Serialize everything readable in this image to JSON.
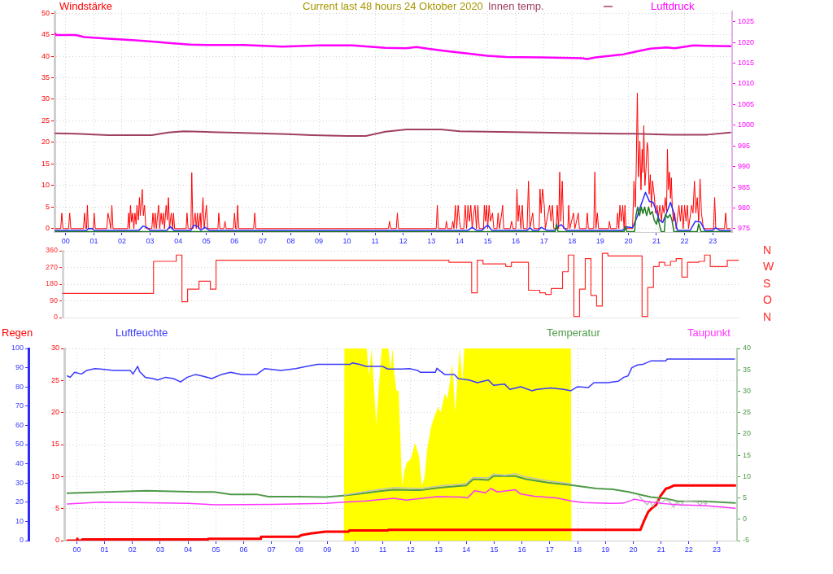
{
  "chart_data": [
    {
      "type": "line",
      "title": "Current last 48 hours 24 Oktober 2020",
      "legend": "top",
      "grid": true,
      "xlim": [
        -0.4,
        23.69
      ],
      "xticks": [
        {
          "value": 0,
          "label": "00"
        },
        {
          "value": 1,
          "label": "01"
        },
        {
          "value": 2,
          "label": "02"
        },
        {
          "value": 3,
          "label": "03"
        },
        {
          "value": 4,
          "label": "04"
        },
        {
          "value": 5,
          "label": "05"
        },
        {
          "value": 6,
          "label": "06"
        },
        {
          "value": 7,
          "label": "07"
        },
        {
          "value": 8,
          "label": "08"
        },
        {
          "value": 9,
          "label": "09"
        },
        {
          "value": 10,
          "label": "10"
        },
        {
          "value": 11,
          "label": "11"
        },
        {
          "value": 12,
          "label": "12"
        },
        {
          "value": 13,
          "label": "13"
        },
        {
          "value": 14,
          "label": "14"
        },
        {
          "value": 15,
          "label": "15"
        },
        {
          "value": 16,
          "label": "16"
        },
        {
          "value": 17,
          "label": "17"
        },
        {
          "value": 18,
          "label": "18"
        },
        {
          "value": 19,
          "label": "19"
        },
        {
          "value": 20,
          "label": "20"
        },
        {
          "value": 21,
          "label": "21"
        },
        {
          "value": 22,
          "label": "22"
        },
        {
          "value": 23,
          "label": "23"
        }
      ],
      "ylim": [
        -0.8,
        50.4
      ],
      "yticks": [
        0,
        5,
        10,
        15,
        20,
        25,
        30,
        35,
        40,
        45,
        50
      ],
      "y2lim": [
        974.2,
        1027.5
      ],
      "y2ticks": [
        975,
        980,
        985,
        990,
        995,
        1000,
        1005,
        1010,
        1015,
        1020,
        1025
      ],
      "series": [
        {
          "name": "Windstärke",
          "color": "#ff0000",
          "x": [
            -0.37,
            -0.18,
            -0.14,
            -0.1,
            0.1,
            0.14,
            0.18,
            0.63,
            0.67,
            0.71,
            0.74,
            0.77,
            0.8,
            0.98,
            1.01,
            1.05,
            1.46,
            1.5,
            1.55,
            1.6,
            1.64,
            1.68,
            2.2,
            2.24,
            2.27,
            2.3,
            2.34,
            2.38,
            2.42,
            2.46,
            2.5,
            2.53,
            2.58,
            2.62,
            2.65,
            2.72,
            2.76,
            2.8,
            2.85,
            3.06,
            3.1,
            3.14,
            3.18,
            3.22,
            3.3,
            3.34,
            3.39,
            3.43,
            3.47,
            3.51,
            3.57,
            3.61,
            3.65,
            3.69,
            3.75,
            3.8,
            3.83,
            3.87,
            4.28,
            4.31,
            4.35,
            4.45,
            4.48,
            4.52,
            4.6,
            4.64,
            4.68,
            4.72,
            4.78,
            4.81,
            4.88,
            4.92,
            5,
            5.05,
            5.41,
            5.44,
            5.48,
            5.62,
            5.66,
            5.7,
            5.96,
            6,
            6.04,
            6.08,
            6.11,
            6.15,
            6.68,
            6.72,
            6.76,
            11.47,
            11.51,
            11.55,
            11.75,
            11.79,
            11.83,
            13.17,
            13.21,
            13.25,
            13.5,
            13.53,
            13.57,
            13.72,
            13.76,
            13.8,
            13.85,
            13.9,
            13.95,
            14,
            14.04,
            14.15,
            14.2,
            14.25,
            14.3,
            14.35,
            14.4,
            14.45,
            14.5,
            14.55,
            14.6,
            14.65,
            14.7,
            14.85,
            14.88,
            14.92,
            14.96,
            15,
            15.05,
            15.1,
            15.17,
            15.22,
            15.33,
            15.37,
            15.42,
            15.5,
            15.53,
            15.57,
            15.8,
            15.85,
            15.9,
            16,
            16.04,
            16.08,
            16.12,
            16.18,
            16.23,
            16.27,
            16.4,
            16.45,
            16.5,
            16.6,
            16.64,
            16.83,
            16.86,
            16.9,
            16.95,
            17.01,
            17.05,
            17.2,
            17.25,
            17.3,
            17.35,
            17.44,
            17.47,
            17.52,
            17.56,
            17.6,
            17.65,
            17.7,
            17.85,
            17.88,
            17.92,
            18.05,
            18.1,
            18.22,
            18.26,
            18.5,
            18.54,
            18.58,
            18.77,
            18.81,
            18.85,
            18.9,
            18.94,
            19.3,
            19.33,
            19.37,
            19.58,
            19.62,
            19.66,
            19.7,
            19.75,
            19.8,
            19.85,
            19.88,
            19.92,
            20.15,
            20.2,
            20.25,
            20.28,
            20.32,
            20.36,
            20.41,
            20.45,
            20.49,
            20.52,
            20.55,
            20.59,
            20.63,
            20.67,
            20.7,
            20.74,
            20.78,
            20.82,
            20.86,
            20.92,
            20.97,
            21.02,
            21.07,
            21.12,
            21.18,
            21.22,
            21.27,
            21.31,
            21.36,
            21.39,
            21.42,
            21.46,
            21.5,
            21.53,
            21.56,
            21.6,
            21.65,
            21.7,
            21.8,
            21.85,
            21.9,
            21.95,
            22,
            22.05,
            22.1,
            22.14,
            22.25,
            22.3,
            22.35,
            22.4,
            22.45,
            22.5,
            22.55,
            22.6,
            22.67,
            23.03,
            23.07,
            23.11,
            23.42,
            23.46,
            23.5,
            23.63
          ],
          "values": [
            0,
            0,
            3.6,
            0,
            0,
            3.6,
            0,
            0,
            3.6,
            0,
            0,
            5.4,
            0,
            0,
            3.6,
            0,
            0,
            3.6,
            2,
            0,
            5.4,
            0,
            0,
            3.6,
            0,
            5.4,
            1.5,
            3.6,
            0,
            3.6,
            1,
            5.4,
            2,
            7.2,
            3,
            9.1,
            3,
            5.4,
            0,
            0,
            3.6,
            0,
            3.6,
            0,
            5.4,
            0,
            3.6,
            1,
            3.6,
            0,
            5.4,
            2,
            7.2,
            0,
            3.6,
            0,
            3.6,
            0,
            0,
            3.6,
            0,
            0,
            13,
            0,
            3.6,
            0,
            3.6,
            0,
            3.6,
            0,
            7.2,
            0,
            5.4,
            0,
            0,
            3.6,
            0,
            0,
            1.7,
            0,
            0,
            3.6,
            0,
            0,
            5.4,
            0,
            0,
            3.6,
            0,
            0,
            1.7,
            0,
            0,
            3.6,
            0,
            0,
            5.4,
            0,
            0,
            1.7,
            0,
            0,
            1.7,
            0,
            5.4,
            0,
            5.4,
            1.7,
            0,
            0,
            5.4,
            0,
            5.4,
            1.7,
            5.4,
            0,
            3.6,
            5.4,
            0,
            5.4,
            0,
            0,
            5.4,
            1.7,
            5.4,
            0,
            5.4,
            1.7,
            3.6,
            0,
            0,
            3.6,
            0,
            3.6,
            5.4,
            0,
            0,
            1.7,
            0,
            0,
            9.2,
            1.7,
            5.4,
            0,
            5.4,
            0,
            0,
            11,
            0,
            3.6,
            0,
            0,
            9.2,
            3.6,
            9.2,
            5.4,
            0,
            5.4,
            1.7,
            5.4,
            0,
            0,
            5.4,
            0,
            13.1,
            1.7,
            11,
            0,
            0,
            5.4,
            0,
            3.6,
            0,
            3.6,
            0,
            0,
            3.6,
            0,
            0,
            13.1,
            0,
            3.6,
            0,
            0,
            1.7,
            0,
            0,
            3.6,
            0,
            5.4,
            1.7,
            5.4,
            0,
            5.4,
            0,
            0,
            11,
            5,
            14,
            31.5,
            12,
            20.3,
            9,
            18.4,
            13,
            23.9,
            10,
            14,
            20,
            18.5,
            8,
            12.5,
            5,
            11.1,
            7.7,
            3.6,
            5.4,
            2.7,
            5.4,
            1.7,
            5.4,
            3.6,
            7.2,
            4,
            18.4,
            9,
            13.1,
            7,
            11.8,
            5.4,
            1.7,
            3.6,
            0,
            5.4,
            1.7,
            5.4,
            0,
            5.4,
            1.7,
            5.4,
            0,
            5.4,
            3.6,
            11,
            3.6,
            7.2,
            1.7,
            11.5,
            3.6,
            0,
            0,
            7.2,
            0,
            0,
            3.6,
            0,
            0
          ]
        },
        {
          "color": "#2b2bff",
          "x": [
            -0.37,
            0.75,
            0.8,
            0.95,
            1,
            2.6,
            2.75,
            2.9,
            3,
            3.6,
            3.7,
            3.85,
            4.45,
            4.55,
            4.7,
            4.8,
            4.95,
            5.1,
            14.3,
            14.45,
            14.6,
            14.8,
            14.9,
            15,
            15.15,
            16.4,
            16.5,
            16.6,
            16.8,
            16.9,
            17.1,
            17.4,
            17.5,
            17.62,
            17.8,
            19.8,
            19.95,
            20.15,
            20.3,
            20.45,
            20.61,
            20.75,
            20.88,
            21,
            21.1,
            21.22,
            21.35,
            21.5,
            21.6,
            21.74,
            22.2,
            22.38,
            22.57,
            22.72,
            23,
            23.1,
            23.25,
            23.63
          ],
          "values": [
            -0.4,
            -0.4,
            0,
            0,
            -0.4,
            -0.4,
            0.6,
            0.2,
            -0.4,
            -0.4,
            0.5,
            -0.4,
            -0.4,
            0.8,
            0.5,
            -0.4,
            0.3,
            -0.4,
            -0.4,
            0.3,
            -0.4,
            -0.4,
            0.3,
            0.8,
            -0.4,
            -0.4,
            0.2,
            -0.4,
            -0.4,
            0.3,
            -0.4,
            -0.4,
            0.5,
            0.9,
            -0.4,
            -0.4,
            0.4,
            0.2,
            2.5,
            5.5,
            8.4,
            6.3,
            6.1,
            4,
            2,
            1.4,
            3.5,
            6.1,
            4,
            -0.4,
            -0.4,
            1.7,
            1.5,
            -0.4,
            -0.4,
            0.2,
            -0.4,
            -0.4
          ]
        },
        {
          "color": "#1f7a1f",
          "x": [
            -0.37,
            17.4,
            17.45,
            17.5,
            19.85,
            19.9,
            19.95,
            20.22,
            20.27,
            20.33,
            20.4,
            20.46,
            20.52,
            20.58,
            20.65,
            20.72,
            20.78,
            20.85,
            20.92,
            21,
            21.05,
            21.12,
            21.17,
            21.28,
            21.32,
            21.4,
            21.48,
            21.55,
            21.62,
            22.45,
            22.5,
            22.58,
            23.63
          ],
          "values": [
            -0.7,
            -0.7,
            1.1,
            -0.7,
            -0.7,
            0.5,
            -0.7,
            -0.7,
            3,
            5,
            3,
            5,
            3.5,
            5,
            3,
            5,
            3.3,
            4,
            2,
            1,
            2.5,
            0.5,
            -0.7,
            -0.7,
            3.3,
            2.5,
            3.3,
            2,
            -0.7,
            -0.7,
            1.1,
            -0.7,
            -0.7
          ]
        },
        {
          "name": "Innen temp.",
          "color": "#a0405f",
          "x": [
            -0.37,
            0.36,
            1.51,
            3.06,
            3.64,
            4.2,
            5.17,
            6.33,
            7.88,
            8.75,
            10,
            10.67,
            11.36,
            12.12,
            13.34,
            14.01,
            15.95,
            18.66,
            20.2,
            21.55,
            22.81,
            23.63
          ],
          "values": [
            22.1,
            22,
            21.7,
            21.7,
            22.3,
            22.6,
            22.4,
            22.2,
            21.9,
            21.7,
            21.5,
            21.5,
            22.5,
            23,
            23,
            22.6,
            22.4,
            22.1,
            22,
            21.8,
            21.8,
            22.3
          ]
        },
        {
          "name": "Luftdruck",
          "color": "#ff00ff",
          "axis": "y2",
          "x": [
            -0.37,
            -0.34,
            0.36,
            0.65,
            1.51,
            2.48,
            3.06,
            3.83,
            4.41,
            4.98,
            6.33,
            7.69,
            9.03,
            10.19,
            10.96,
            11.36,
            12.1,
            12.47,
            12.86,
            13.53,
            14.3,
            14.98,
            15.66,
            16.91,
            18.36,
            18.54,
            18.84,
            19.81,
            20.29,
            20.78,
            21.36,
            21.65,
            22.32,
            22.71,
            23.63
          ],
          "values": [
            1022.1,
            1021.8,
            1021.8,
            1021.3,
            1020.9,
            1020.5,
            1020.2,
            1019.8,
            1019.5,
            1019.4,
            1019.4,
            1019,
            1019.3,
            1019.3,
            1018.9,
            1018.7,
            1018.6,
            1018.9,
            1018.5,
            1017.9,
            1017.3,
            1016.8,
            1016.5,
            1016.4,
            1016.2,
            1016,
            1016.4,
            1017.1,
            1017.8,
            1018.5,
            1018.8,
            1018.6,
            1019.3,
            1019.2,
            1019.1
          ]
        }
      ]
    },
    {
      "type": "line",
      "grid": "y",
      "tick_labels": "y",
      "categories": [
        null,
        null,
        null,
        null,
        null,
        null,
        null,
        null,
        null,
        null,
        null,
        null,
        null,
        null,
        null,
        null,
        null,
        null,
        null,
        null,
        null,
        null,
        null,
        null,
        null,
        null,
        null,
        null,
        null,
        null,
        null,
        null,
        null,
        null,
        null,
        null,
        null,
        null,
        null,
        null,
        null,
        null,
        null,
        null,
        null,
        null,
        null,
        null,
        null,
        null,
        null,
        null,
        null,
        null,
        null,
        null,
        null,
        null,
        null,
        null,
        null,
        null,
        null,
        null,
        null,
        null,
        null,
        null,
        null,
        null,
        null,
        null,
        null,
        null,
        null,
        null,
        null,
        null,
        null,
        null,
        null,
        null,
        null,
        null,
        null,
        null,
        null,
        null,
        null,
        null,
        null,
        null,
        null,
        null,
        null,
        null,
        null,
        null,
        null,
        null,
        null,
        null,
        null,
        null,
        null,
        null,
        null,
        null,
        null,
        null,
        null,
        null,
        null,
        null,
        null,
        null,
        null,
        null,
        null,
        null
      ],
      "ylim": [
        0,
        360
      ],
      "yticks": [
        0,
        90,
        180,
        270,
        360
      ],
      "annotations": [
        "N",
        "W",
        "S",
        "O",
        "N"
      ],
      "series": [
        {
          "type": "step",
          "color": "#ff2a2a",
          "values": [
            130,
            130,
            130,
            130,
            130,
            130,
            130,
            130,
            130,
            130,
            130,
            130,
            130,
            130,
            130,
            130,
            303,
            303,
            303,
            303,
            337,
            85,
            153,
            153,
            196,
            196,
            153,
            309,
            309,
            309,
            309,
            309,
            309,
            309,
            309,
            309,
            309,
            309,
            309,
            309,
            309,
            309,
            309,
            309,
            309,
            309,
            309,
            309,
            309,
            309,
            309,
            309,
            309,
            309,
            309,
            309,
            309,
            309,
            309,
            309,
            309,
            309,
            309,
            309,
            309,
            309,
            309,
            309,
            298,
            298,
            298,
            298,
            133,
            309,
            289,
            289,
            289,
            289,
            275,
            298,
            298,
            298,
            147,
            147,
            133,
            125,
            156,
            156,
            247,
            337,
            6,
            153,
            318,
            119,
            62,
            346,
            332,
            332,
            332,
            332,
            332,
            332,
            6,
            162,
            275,
            298,
            281,
            303,
            318,
            218,
            298,
            298,
            303,
            337,
            275,
            275,
            275,
            309,
            309,
            309
          ]
        }
      ]
    },
    {
      "type": "line",
      "legend": "top",
      "grid": true,
      "xlim": [
        -0.45,
        23.73
      ],
      "xticks": [
        {
          "value": 0,
          "label": "00"
        },
        {
          "value": 1,
          "label": "01"
        },
        {
          "value": 2,
          "label": "02"
        },
        {
          "value": 3,
          "label": "03"
        },
        {
          "value": 4,
          "label": "04"
        },
        {
          "value": 5,
          "label": "05"
        },
        {
          "value": 6,
          "label": "06"
        },
        {
          "value": 7,
          "label": "07"
        },
        {
          "value": 8,
          "label": "08"
        },
        {
          "value": 9,
          "label": "09"
        },
        {
          "value": 10,
          "label": "10"
        },
        {
          "value": 11,
          "label": "11"
        },
        {
          "value": 12,
          "label": "12"
        },
        {
          "value": 13,
          "label": "13"
        },
        {
          "value": 14,
          "label": "14"
        },
        {
          "value": 15,
          "label": "15"
        },
        {
          "value": 16,
          "label": "16"
        },
        {
          "value": 17,
          "label": "17"
        },
        {
          "value": 18,
          "label": "18"
        },
        {
          "value": 19,
          "label": "19"
        },
        {
          "value": 20,
          "label": "20"
        },
        {
          "value": 21,
          "label": "21"
        },
        {
          "value": 22,
          "label": "22"
        },
        {
          "value": 23,
          "label": "23"
        }
      ],
      "ylim": [
        0,
        30
      ],
      "yticks": [
        0,
        5,
        10,
        15,
        20,
        25,
        30
      ],
      "y2lim": [
        -5,
        40
      ],
      "y2ticks": [
        -5,
        0,
        5,
        10,
        15,
        20,
        25,
        30,
        35,
        40
      ],
      "y3lim": [
        0,
        100
      ],
      "y3ticks": [
        0,
        10,
        20,
        30,
        40,
        50,
        60,
        70,
        80,
        90,
        100
      ],
      "series": [
        {
          "type": "area",
          "color": "#ffff00",
          "x": [
            -0.34,
            9.6,
            9.62,
            10.42,
            10.5,
            10.6,
            10.76,
            10.96,
            11.2,
            11.28,
            11.35,
            11.42,
            11.49,
            11.57,
            11.69,
            11.77,
            11.86,
            12.01,
            12.16,
            12.3,
            12.4,
            12.5,
            12.6,
            12.74,
            12.84,
            12.98,
            13.08,
            13.23,
            13.32,
            13.42,
            13.5,
            13.6,
            13.68,
            13.76,
            13.86,
            13.93,
            17.76,
            17.78,
            23.66
          ],
          "values": [
            0,
            0,
            30,
            30,
            25.7,
            30,
            18.2,
            30,
            30,
            26.6,
            30,
            25.9,
            23.4,
            23.4,
            8.6,
            10.7,
            12.2,
            12.8,
            15.3,
            13.2,
            8.6,
            9.8,
            14.5,
            17.9,
            19.2,
            20.8,
            20,
            23,
            22.1,
            25.1,
            27.6,
            20,
            25.1,
            30,
            24.7,
            30,
            30,
            0,
            0
          ]
        },
        {
          "name": "Regen",
          "color": "#ff0000",
          "x": [
            -0.34,
            0,
            0.02,
            0.06,
            0.17,
            0.2,
            4.7,
            4.72,
            6.6,
            6.62,
            7.97,
            8,
            8.11,
            8.4,
            8.94,
            9.77,
            9.8,
            11.18,
            11.2,
            20.26,
            20.39,
            20.54,
            20.68,
            20.83,
            20.97,
            21.17,
            21.32,
            21.46,
            23.66
          ],
          "values": [
            0,
            0,
            0.3,
            0,
            0,
            0.2,
            0.2,
            0.3,
            0.3,
            0.6,
            0.6,
            0.7,
            0.9,
            1.1,
            1.4,
            1.4,
            1.6,
            1.6,
            1.7,
            1.7,
            3.1,
            4.5,
            5.1,
            5.6,
            6.9,
            8.1,
            8.3,
            8.6,
            8.6
          ]
        },
        {
          "name": "Luftfeuchte",
          "color": "#3a3aff",
          "axis": "y3",
          "x": [
            -0.34,
            -0.24,
            -0.08,
            0.17,
            0.36,
            0.65,
            0.85,
            1.34,
            1.92,
            2.02,
            2.19,
            2.26,
            2.46,
            2.75,
            2.9,
            3.19,
            3.48,
            3.73,
            3.97,
            4.26,
            4.5,
            4.85,
            5.19,
            5.53,
            5.92,
            6.46,
            6.75,
            7.33,
            7.87,
            8.26,
            8.65,
            9.82,
            9.91,
            10.16,
            10.4,
            10.98,
            11.18,
            11.67,
            11.96,
            12.25,
            12.35,
            12.89,
            12.94,
            13.23,
            13.57,
            13.71,
            14.1,
            14.4,
            14.79,
            14.98,
            15.37,
            15.57,
            15.96,
            16.35,
            16.54,
            17.03,
            17.51,
            17.76,
            18,
            18.39,
            18.59,
            19.08,
            19.46,
            19.66,
            19.81,
            19.95,
            20.15,
            20.34,
            20.63,
            21.17,
            21.22,
            23.64
          ],
          "values": [
            85.7,
            85,
            87.6,
            86.7,
            88.6,
            89.5,
            89.3,
            88.6,
            88.6,
            86.7,
            90.7,
            87.9,
            85,
            84.3,
            83.6,
            85,
            84.3,
            82.6,
            85,
            86.4,
            85.7,
            84.3,
            86.4,
            87.6,
            86.4,
            86.4,
            89.5,
            88.6,
            89.5,
            90.7,
            91.7,
            91.7,
            92.5,
            91.7,
            90.7,
            90.7,
            89.3,
            89.3,
            89.5,
            88.6,
            87.6,
            87.6,
            89.7,
            86.4,
            86.4,
            84.3,
            83.6,
            82.2,
            83.6,
            80.8,
            81.5,
            78.7,
            80.1,
            78,
            78.7,
            79.4,
            78.7,
            78,
            80.1,
            79.7,
            82.2,
            82.2,
            82.9,
            85,
            85.7,
            90,
            91.4,
            91.7,
            93.5,
            93.5,
            94.5,
            94.5
          ]
        },
        {
          "name": "Temperatur",
          "color": "#4f9a4a",
          "axis": "y2",
          "x": [
            -0.34,
            2.5,
            4.3,
            4.94,
            5.53,
            6.5,
            6.89,
            7.97,
            8.94,
            9.5,
            10.1,
            10.89,
            11.38,
            12.35,
            13.03,
            13.81,
            14,
            14.25,
            14.79,
            14.98,
            15.76,
            16.15,
            16.93,
            17.76,
            18.68,
            19.27,
            19.85,
            20.15,
            20.63,
            21.22,
            21.61,
            22.58,
            23.66
          ],
          "values": [
            6.1,
            6.7,
            6.4,
            6.4,
            5.8,
            5.8,
            5.3,
            5.3,
            5.2,
            5.5,
            5.9,
            6.6,
            6.9,
            6.8,
            7.4,
            7.8,
            7.9,
            9.4,
            9.2,
            10.1,
            10.1,
            9.4,
            8.6,
            8,
            7.2,
            7,
            6.4,
            5.9,
            5.2,
            4.8,
            4.2,
            4.2,
            3.8
          ]
        },
        {
          "color": "#c0c0c0",
          "axis": "y2",
          "x": [
            9.62,
            10.9,
            11.4,
            12.35,
            13.03,
            13.81,
            14,
            14.25,
            14.79,
            14.98,
            15.4,
            15.76,
            16.15,
            16.93,
            17.76,
            19,
            20.2,
            20.35,
            20.5,
            20.6,
            20.7,
            20.85,
            21,
            21.15,
            21.3,
            21.45,
            21.55,
            21.7,
            21.85,
            22.3,
            22.4,
            22.5,
            22.6,
            22.7
          ],
          "values": [
            5.7,
            7,
            7.4,
            7.2,
            7.8,
            8.2,
            8.4,
            9.8,
            9.7,
            10.6,
            10.3,
            10.7,
            9.9,
            9,
            8.3,
            null,
            5.6,
            4.4,
            3.4,
            4.2,
            3,
            4.5,
            3.6,
            4.6,
            4.2,
            2.8,
            4,
            3.3,
            4.2,
            4,
            3.2,
            4.1,
            3.5,
            4.1
          ]
        },
        {
          "name": "Taupunkt",
          "color": "#ff33ff",
          "axis": "y2",
          "x": [
            -0.34,
            0.85,
            2.1,
            4,
            5,
            7,
            8.94,
            9.6,
            10.4,
            11.4,
            11.85,
            12.95,
            13.81,
            14.05,
            14.3,
            14.69,
            14.88,
            15.12,
            15.76,
            15.96,
            16.44,
            17.22,
            17.76,
            18.2,
            19.17,
            19.66,
            20.05,
            20.44,
            21.03,
            21.61,
            22.58,
            23.66
          ],
          "values": [
            3.6,
            4,
            3.9,
            3.7,
            3.4,
            3.5,
            3.7,
            4,
            4.3,
            4.9,
            4.5,
            5.3,
            5.2,
            5,
            6.7,
            6.2,
            7.2,
            6.4,
            6.9,
            5.9,
            5.4,
            5,
            4.3,
            3.9,
            3.7,
            3.8,
            4.7,
            4.2,
            3.7,
            3.4,
            3.2,
            2.6
          ]
        }
      ]
    }
  ]
}
